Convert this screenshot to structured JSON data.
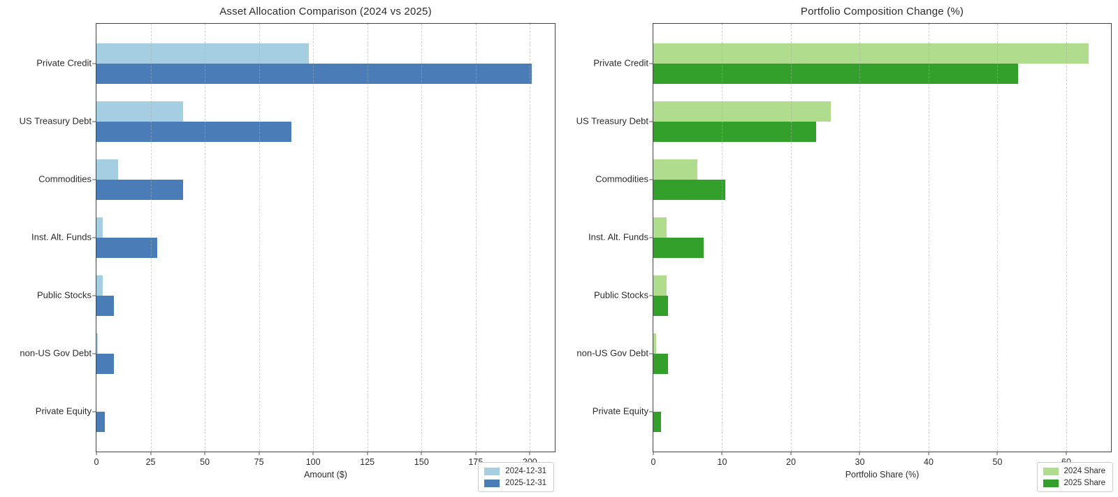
{
  "page": {
    "background": "#ffffff"
  },
  "chart_data": [
    {
      "type": "bar",
      "orientation": "horizontal",
      "title": "Asset Allocation Comparison (2024 vs 2025)",
      "xlabel": "Amount ($)",
      "categories": [
        "Private Credit",
        "US Treasury Debt",
        "Commodities",
        "Inst. Alt. Funds",
        "Public Stocks",
        "non-US Gov Debt",
        "Private Equity"
      ],
      "series": [
        {
          "name": "2024-12-31",
          "color": "#a6cee3",
          "values": [
            98,
            40,
            10,
            3,
            3,
            0.5,
            0
          ]
        },
        {
          "name": "2025-12-31",
          "color": "#4a7db8",
          "values": [
            201,
            90,
            40,
            28,
            8,
            8,
            4
          ]
        }
      ],
      "xlim": [
        0,
        211.5
      ],
      "xticks": [
        0,
        25,
        50,
        75,
        100,
        125,
        150,
        175,
        200
      ],
      "grid": "dashed-vertical",
      "legend_position": "lower-right"
    },
    {
      "type": "bar",
      "orientation": "horizontal",
      "title": "Portfolio Composition Change (%)",
      "xlabel": "Portfolio Share (%)",
      "categories": [
        "Private Credit",
        "US Treasury Debt",
        "Commodities",
        "Inst. Alt. Funds",
        "Public Stocks",
        "non-US Gov Debt",
        "Private Equity"
      ],
      "series": [
        {
          "name": "2024 Share",
          "color": "#b0dc8e",
          "values": [
            63.3,
            25.8,
            6.4,
            1.9,
            1.9,
            0.4,
            0
          ]
        },
        {
          "name": "2025 Share",
          "color": "#33a02c",
          "values": [
            53,
            23.7,
            10.5,
            7.3,
            2.1,
            2.1,
            1.1
          ]
        }
      ],
      "xlim": [
        0,
        66.5
      ],
      "xticks": [
        0,
        10,
        20,
        30,
        40,
        50,
        60
      ],
      "grid": "dashed-vertical",
      "legend_position": "lower-right"
    }
  ]
}
